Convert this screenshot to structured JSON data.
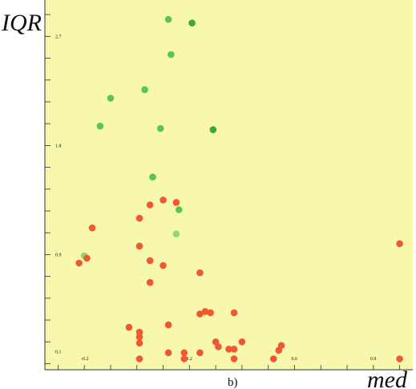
{
  "chart_data": {
    "type": "scatter",
    "xlabel": "med",
    "ylabel": "IQR",
    "panel_label": "b)",
    "grid": false,
    "background": "#f7f7ae",
    "x_ticks": [
      -0.2,
      0.2,
      0.6,
      0.9
    ],
    "y_ticks": [
      0.1,
      0.9,
      1.8,
      2.7
    ],
    "xlim": [
      -0.35,
      1.05
    ],
    "ylim": [
      -0.05,
      3.0
    ],
    "points": [
      {
        "x": 0.12,
        "y": 2.84,
        "color": "#5cc552"
      },
      {
        "x": 0.21,
        "y": 2.81,
        "color": "#3ca83a"
      },
      {
        "x": 0.13,
        "y": 2.55,
        "color": "#5cc552"
      },
      {
        "x": 0.03,
        "y": 2.26,
        "color": "#5cc552"
      },
      {
        "x": -0.1,
        "y": 2.19,
        "color": "#5cc552"
      },
      {
        "x": -0.14,
        "y": 1.96,
        "color": "#5cc552"
      },
      {
        "x": 0.09,
        "y": 1.94,
        "color": "#5cc552"
      },
      {
        "x": 0.29,
        "y": 1.93,
        "color": "#3ca83a"
      },
      {
        "x": 0.06,
        "y": 1.54,
        "color": "#5cc552"
      },
      {
        "x": 0.16,
        "y": 1.27,
        "color": "#5cc552"
      },
      {
        "x": 0.15,
        "y": 1.07,
        "color": "#8ed678"
      },
      {
        "x": -0.2,
        "y": 0.89,
        "color": "#8ed678"
      },
      {
        "x": 0.1,
        "y": 1.35,
        "color": "#f0582f"
      },
      {
        "x": 0.15,
        "y": 1.33,
        "color": "#f0582f"
      },
      {
        "x": 0.05,
        "y": 1.31,
        "color": "#f0582f"
      },
      {
        "x": 0.01,
        "y": 1.2,
        "color": "#f0582f"
      },
      {
        "x": -0.17,
        "y": 1.12,
        "color": "#f0582f"
      },
      {
        "x": 0.01,
        "y": 0.97,
        "color": "#f0582f"
      },
      {
        "x": -0.19,
        "y": 0.87,
        "color": "#f0582f"
      },
      {
        "x": -0.22,
        "y": 0.83,
        "color": "#f0582f"
      },
      {
        "x": 0.05,
        "y": 0.85,
        "color": "#f0582f"
      },
      {
        "x": 0.1,
        "y": 0.81,
        "color": "#f0582f"
      },
      {
        "x": 0.24,
        "y": 0.75,
        "color": "#f0582f"
      },
      {
        "x": 0.05,
        "y": 0.67,
        "color": "#f0582f"
      },
      {
        "x": 0.26,
        "y": 0.43,
        "color": "#f0582f"
      },
      {
        "x": 0.24,
        "y": 0.41,
        "color": "#f0582f"
      },
      {
        "x": 0.28,
        "y": 0.42,
        "color": "#f0582f"
      },
      {
        "x": 0.37,
        "y": 0.42,
        "color": "#f0582f"
      },
      {
        "x": -0.03,
        "y": 0.3,
        "color": "#f0582f"
      },
      {
        "x": 0.12,
        "y": 0.32,
        "color": "#f0582f"
      },
      {
        "x": 0.01,
        "y": 0.26,
        "color": "#f0582f"
      },
      {
        "x": 0.01,
        "y": 0.22,
        "color": "#f0582f"
      },
      {
        "x": 0.01,
        "y": 0.17,
        "color": "#f0582f"
      },
      {
        "x": 0.3,
        "y": 0.18,
        "color": "#f0582f"
      },
      {
        "x": 0.31,
        "y": 0.14,
        "color": "#f0582f"
      },
      {
        "x": 0.35,
        "y": 0.12,
        "color": "#f0582f"
      },
      {
        "x": 0.37,
        "y": 0.12,
        "color": "#f0582f"
      },
      {
        "x": 0.4,
        "y": 0.18,
        "color": "#f0582f"
      },
      {
        "x": 0.55,
        "y": 0.15,
        "color": "#f0582f"
      },
      {
        "x": 0.54,
        "y": 0.11,
        "color": "#f0582f"
      },
      {
        "x": 0.12,
        "y": 0.09,
        "color": "#f0582f"
      },
      {
        "x": 0.18,
        "y": 0.09,
        "color": "#f0582f"
      },
      {
        "x": 0.24,
        "y": 0.09,
        "color": "#f0582f"
      },
      {
        "x": 0.01,
        "y": 0.04,
        "color": "#f0582f"
      },
      {
        "x": 0.18,
        "y": 0.04,
        "color": "#f0582f"
      },
      {
        "x": 0.37,
        "y": 0.04,
        "color": "#f0582f"
      },
      {
        "x": 0.52,
        "y": 0.04,
        "color": "#f0582f"
      },
      {
        "x": 1.0,
        "y": 0.99,
        "color": "#f0582f"
      },
      {
        "x": 1.0,
        "y": 0.04,
        "color": "#f0582f"
      }
    ]
  }
}
